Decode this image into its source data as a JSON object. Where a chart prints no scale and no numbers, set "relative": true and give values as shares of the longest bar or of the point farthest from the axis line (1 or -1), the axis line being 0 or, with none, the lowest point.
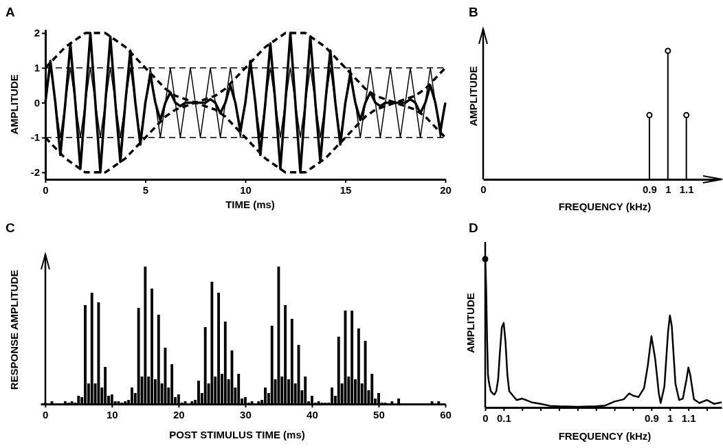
{
  "chart_data": [
    {
      "type": "line",
      "title": "A",
      "xlabel": "TIME (ms)",
      "ylabel": "AMPLITUDE",
      "xlim": [
        0,
        20
      ],
      "xticks": [
        0,
        5,
        10,
        15,
        20
      ],
      "ylim": [
        -2.2,
        2.1
      ],
      "yticks": [
        -2,
        -1,
        0,
        1,
        2
      ],
      "marker": "none",
      "ref_lines": [
        {
          "axis": "y",
          "value": 1,
          "line_style": "dashed",
          "color": "#000000"
        },
        {
          "axis": "y",
          "value": -1,
          "line_style": "dashed",
          "color": "#000000"
        }
      ],
      "series": [
        {
          "color": "#000000",
          "line_style": "solid",
          "x": [
            0,
            0.25,
            0.5,
            0.75,
            1,
            1.25,
            1.5,
            1.75,
            2,
            2.25,
            2.5,
            2.75,
            3,
            3.25,
            3.5,
            3.75,
            4,
            4.25,
            4.5,
            4.75,
            5,
            5.25,
            5.5,
            5.75,
            6,
            6.25,
            6.5,
            6.75,
            7,
            7.25,
            7.5,
            7.75,
            8,
            8.25,
            8.5,
            8.75,
            9,
            9.25,
            9.5,
            9.75,
            10,
            10.25,
            10.5,
            10.75,
            11,
            11.25,
            11.5,
            11.75,
            12,
            12.25,
            12.5,
            12.75,
            13,
            13.25,
            13.5,
            13.75,
            14,
            14.25,
            14.5,
            14.75,
            15,
            15.25,
            15.5,
            15.75,
            16,
            16.25,
            16.5,
            16.75,
            17,
            17.25,
            17.5,
            17.75,
            18,
            18.25,
            18.5,
            18.75,
            19,
            19.25,
            19.5,
            19.75,
            20
          ],
          "values": [
            0,
            1.2,
            0,
            -1.5,
            0,
            1.7,
            0,
            -1.9,
            0,
            2,
            0,
            -2,
            0,
            1.9,
            0,
            -1.7,
            0,
            1.5,
            0,
            -1.2,
            0,
            0.8,
            0,
            -0.5,
            0,
            0.3,
            0,
            -0.1,
            0,
            0,
            0,
            0,
            0,
            0.1,
            0,
            -0.3,
            0,
            0.5,
            0,
            -0.8,
            0,
            1.2,
            0,
            -1.5,
            0,
            1.7,
            0,
            -1.9,
            0,
            2,
            0,
            -2,
            0,
            1.9,
            0,
            -1.7,
            0,
            1.5,
            0,
            -1.2,
            0,
            0.8,
            0,
            -0.5,
            0,
            0.3,
            0,
            -0.1,
            0,
            0,
            0,
            0,
            0,
            0.1,
            0,
            -0.3,
            0,
            0.5,
            0,
            -0.8,
            0
          ]
        },
        {
          "color": "#000000",
          "line_style": "solid",
          "x": [
            0,
            0.25,
            0.5,
            0.75,
            1,
            1.25,
            1.5,
            1.75,
            2,
            2.25,
            2.5,
            2.75,
            3,
            3.25,
            3.5,
            3.75,
            4,
            4.25,
            4.5,
            4.75,
            5,
            5.25,
            5.5,
            5.75,
            6,
            6.25,
            6.5,
            6.75,
            7,
            7.25,
            7.5,
            7.75,
            8,
            8.25,
            8.5,
            8.75,
            9,
            9.25,
            9.5,
            9.75,
            10,
            10.25,
            10.5,
            10.75,
            11,
            11.25,
            11.5,
            11.75,
            12,
            12.25,
            12.5,
            12.75,
            13,
            13.25,
            13.5,
            13.75,
            14,
            14.25,
            14.5,
            14.75,
            15,
            15.25,
            15.5,
            15.75,
            16,
            16.25,
            16.5,
            16.75,
            17,
            17.25,
            17.5,
            17.75,
            18,
            18.25,
            18.5,
            18.75,
            19,
            19.25,
            19.5,
            19.75,
            20
          ],
          "values": [
            0,
            1,
            0,
            -1,
            0,
            1,
            0,
            -1,
            0,
            1,
            0,
            -1,
            0,
            1,
            0,
            -1,
            0,
            1,
            0,
            -1,
            0,
            1,
            0,
            -1,
            0,
            1,
            0,
            -1,
            0,
            1,
            0,
            -1,
            0,
            1,
            0,
            -1,
            0,
            1,
            0,
            -1,
            0,
            1,
            0,
            -1,
            0,
            1,
            0,
            -1,
            0,
            1,
            0,
            -1,
            0,
            1,
            0,
            -1,
            0,
            1,
            0,
            -1,
            0,
            1,
            0,
            -1,
            0,
            1,
            0,
            -1,
            0,
            1,
            0,
            -1,
            0,
            1,
            0,
            -1,
            0,
            1,
            0,
            -1,
            0
          ]
        },
        {
          "color": "#000000",
          "line_style": "dashed",
          "x": [
            0,
            0.5,
            1,
            1.5,
            2,
            2.5,
            3,
            3.5,
            4,
            4.5,
            5,
            5.5,
            6,
            6.5,
            7,
            7.5,
            8,
            8.5,
            9,
            9.5,
            10,
            10.5,
            11,
            11.5,
            12,
            12.5,
            13,
            13.5,
            14,
            14.5,
            15,
            15.5,
            16,
            16.5,
            17,
            17.5,
            18,
            18.5,
            19,
            19.5,
            20
          ],
          "values": [
            1,
            1.3,
            1.6,
            1.8,
            2,
            2,
            2,
            1.8,
            1.6,
            1.3,
            1,
            0.7,
            0.4,
            0.2,
            0.1,
            0,
            0.1,
            0.2,
            0.4,
            0.7,
            1,
            1.3,
            1.6,
            1.8,
            2,
            2,
            2,
            1.8,
            1.6,
            1.3,
            1,
            0.7,
            0.4,
            0.2,
            0.1,
            0,
            0.1,
            0.2,
            0.4,
            0.7,
            1
          ]
        },
        {
          "color": "#000000",
          "line_style": "dashed",
          "x": [
            0,
            0.5,
            1,
            1.5,
            2,
            2.5,
            3,
            3.5,
            4,
            4.5,
            5,
            5.5,
            6,
            6.5,
            7,
            7.5,
            8,
            8.5,
            9,
            9.5,
            10,
            10.5,
            11,
            11.5,
            12,
            12.5,
            13,
            13.5,
            14,
            14.5,
            15,
            15.5,
            16,
            16.5,
            17,
            17.5,
            18,
            18.5,
            19,
            19.5,
            20
          ],
          "values": [
            -1,
            -1.3,
            -1.6,
            -1.8,
            -2,
            -2,
            -2,
            -1.8,
            -1.6,
            -1.3,
            -1,
            -0.7,
            -0.4,
            -0.2,
            -0.1,
            0,
            -0.1,
            -0.2,
            -0.4,
            -0.7,
            -1,
            -1.3,
            -1.6,
            -1.8,
            -2,
            -2,
            -2,
            -1.8,
            -1.6,
            -1.3,
            -1,
            -0.7,
            -0.4,
            -0.2,
            -0.1,
            0,
            -0.1,
            -0.2,
            -0.4,
            -0.7,
            -1
          ]
        }
      ]
    },
    {
      "type": "lollipop",
      "title": "B",
      "xlabel": "FREQUENCY (kHz)",
      "ylabel": "AMPLITUDE",
      "relative": true,
      "xlim": [
        0,
        1.25
      ],
      "xticks": [
        0,
        0.9,
        1,
        1.1
      ],
      "marker": "circle",
      "color": "#000000",
      "x": [
        0.9,
        1,
        1.1
      ],
      "values": [
        0.5,
        1,
        0.5
      ]
    },
    {
      "type": "bar",
      "title": "C",
      "xlabel": "POST STIMULUS TIME (ms)",
      "ylabel": "RESPONSE AMPLITUDE",
      "relative": true,
      "xlim": [
        -0.7,
        60
      ],
      "xticks": [
        0,
        10,
        20,
        30,
        40,
        50,
        60
      ],
      "color": "#000000",
      "x": [
        0,
        0.5,
        1,
        1.5,
        2,
        2.5,
        3,
        3.5,
        4,
        4.5,
        5,
        5.5,
        6,
        6.5,
        7,
        7.5,
        8,
        8.5,
        9,
        9.5,
        10,
        10.5,
        11,
        11.5,
        12,
        12.5,
        13,
        13.5,
        14,
        14.5,
        15,
        15.5,
        16,
        16.5,
        17,
        17.5,
        18,
        18.5,
        19,
        19.5,
        20,
        20.5,
        21,
        21.5,
        22,
        22.5,
        23,
        23.5,
        24,
        24.5,
        25,
        25.5,
        26,
        26.5,
        27,
        27.5,
        28,
        28.5,
        29,
        29.5,
        30,
        30.5,
        31,
        31.5,
        32,
        32.5,
        33,
        33.5,
        34,
        34.5,
        35,
        35.5,
        36,
        36.5,
        37,
        37.5,
        38,
        38.5,
        39,
        39.5,
        40,
        40.5,
        41,
        41.5,
        42,
        42.5,
        43,
        43.5,
        44,
        44.5,
        45,
        45.5,
        46,
        46.5,
        47,
        47.5,
        48,
        48.5,
        49,
        49.5,
        50,
        50.5,
        51,
        51.5,
        52,
        52.5,
        53,
        53.5,
        54,
        54.5,
        55,
        55.5,
        56,
        56.5,
        57,
        57.5,
        58,
        58.5,
        59,
        59.5
      ],
      "values": [
        0.01,
        0,
        0.02,
        0,
        0,
        0,
        0.02,
        0.01,
        0.02,
        0.01,
        0.06,
        0.05,
        0.72,
        0.15,
        0.81,
        0.15,
        0.74,
        0.12,
        0.27,
        0.06,
        0.07,
        0.02,
        0.02,
        0.01,
        0.02,
        0.03,
        0.12,
        0.08,
        0.7,
        0.2,
        1,
        0.2,
        0.84,
        0.18,
        0.65,
        0.15,
        0.41,
        0.12,
        0.29,
        0.05,
        0.07,
        0.01,
        0.02,
        0,
        0.02,
        0.03,
        0.17,
        0.08,
        0.56,
        0.15,
        0.89,
        0.2,
        0.81,
        0.22,
        0.6,
        0.18,
        0.39,
        0.12,
        0.22,
        0.04,
        0.05,
        0.01,
        0.02,
        0,
        0.02,
        0.03,
        0.12,
        0.08,
        0.57,
        0.18,
        1,
        0.2,
        0.72,
        0.18,
        0.62,
        0.15,
        0.43,
        0.1,
        0.2,
        0.02,
        0.06,
        0.01,
        0.02,
        0.01,
        0.01,
        0.01,
        0.12,
        0.06,
        0.49,
        0.15,
        0.68,
        0.2,
        0.68,
        0.18,
        0.55,
        0.15,
        0.46,
        0.1,
        0.22,
        0.04,
        0.08,
        0.01,
        0.01,
        0,
        0.02,
        0,
        0.04,
        0,
        0,
        0,
        0,
        0,
        0,
        0,
        0,
        0,
        0.02,
        0,
        0.02,
        0
      ]
    },
    {
      "type": "line",
      "title": "D",
      "xlabel": "FREQUENCY (kHz)",
      "ylabel": "AMPLITUDE",
      "relative": true,
      "xlim": [
        0,
        1.28
      ],
      "xticks": [
        0,
        0.1,
        {
          "value": 0.2,
          "label": null
        },
        {
          "value": 0.3,
          "label": null
        },
        {
          "value": 0.4,
          "label": null
        },
        {
          "value": 0.5,
          "label": null
        },
        {
          "value": 0.6,
          "label": null
        },
        {
          "value": 0.7,
          "label": null
        },
        {
          "value": 0.8,
          "label": null
        },
        0.9,
        1,
        1.1,
        {
          "value": 1.2,
          "label": null
        }
      ],
      "series": [
        {
          "color": "#000000",
          "marker": "none",
          "x": [
            0,
            0.005,
            0.01,
            0.015,
            0.02,
            0.03,
            0.04,
            0.05,
            0.06,
            0.07,
            0.08,
            0.09,
            0.1,
            0.11,
            0.12,
            0.13,
            0.15,
            0.17,
            0.2,
            0.22,
            0.25,
            0.3,
            0.35,
            0.4,
            0.5,
            0.6,
            0.65,
            0.7,
            0.75,
            0.78,
            0.8,
            0.83,
            0.86,
            0.88,
            0.9,
            0.92,
            0.94,
            0.95,
            0.97,
            0.99,
            1,
            1.01,
            1.03,
            1.05,
            1.07,
            1.09,
            1.1,
            1.11,
            1.13,
            1.16,
            1.2,
            1.24,
            1.28
          ],
          "values": [
            1,
            0.82,
            0.47,
            0.22,
            0.17,
            0.11,
            0.095,
            0.087,
            0.11,
            0.19,
            0.38,
            0.54,
            0.57,
            0.44,
            0.22,
            0.11,
            0.08,
            0.05,
            0.06,
            0.05,
            0.035,
            0.024,
            0.011,
            0.008,
            0.005,
            0.008,
            0.013,
            0.04,
            0.055,
            0.095,
            0.08,
            0.07,
            0.13,
            0.28,
            0.48,
            0.33,
            0.095,
            0.03,
            0.14,
            0.51,
            0.62,
            0.55,
            0.16,
            0.05,
            0.06,
            0.19,
            0.27,
            0.22,
            0.055,
            0.03,
            0.05,
            0.024,
            0.035
          ]
        },
        {
          "type": "scatter",
          "color": "#000000",
          "marker": "circle",
          "x": [
            0
          ],
          "values": [
            1
          ]
        }
      ]
    }
  ]
}
